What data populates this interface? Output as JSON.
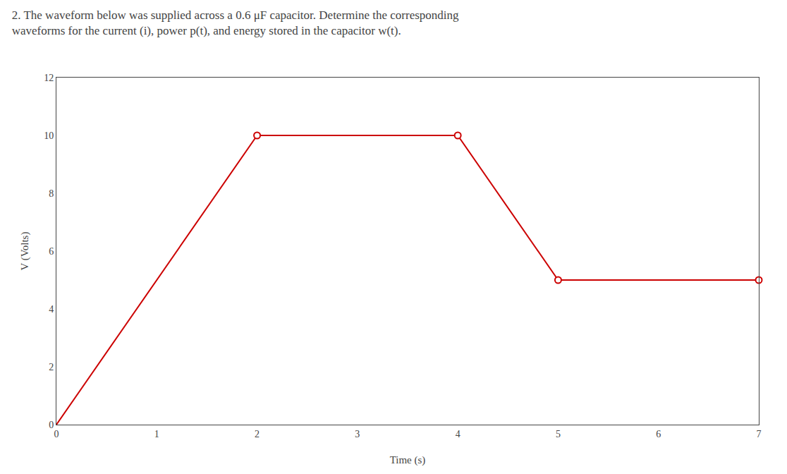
{
  "chart_data": {
    "type": "line",
    "title": "2. The waveform below was supplied across a 0.6 μF capacitor. Determine the corresponding",
    "subtitle": "waveforms for the current (i), power p(t), and energy stored in the capacitor w(t).",
    "x_label": "Time (s)",
    "y_label": "V (Volts)",
    "x": [
      0,
      2,
      4,
      5,
      7
    ],
    "series": [
      {
        "type": "line",
        "marker": "none",
        "line_style": "solid",
        "color": "#cc0000",
        "values": [
          0,
          10,
          10,
          5,
          5
        ]
      },
      {
        "type": "scatter",
        "marker": "open circle",
        "color": "#cc0000",
        "values": [
          null,
          10,
          10,
          5,
          5
        ]
      }
    ],
    "xlim": [
      0,
      7
    ],
    "ylim": [
      0,
      12
    ],
    "xticks": [
      0,
      1,
      2,
      3,
      4,
      5,
      6,
      7
    ],
    "yticks": [
      0,
      2,
      4,
      6,
      8,
      10,
      12
    ],
    "grid": false
  }
}
